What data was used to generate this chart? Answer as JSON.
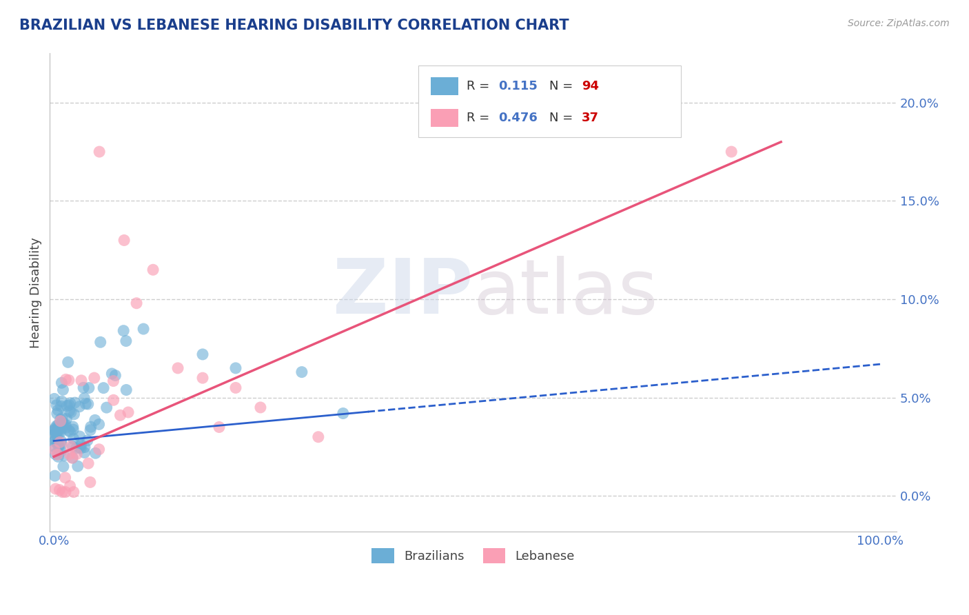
{
  "title": "BRAZILIAN VS LEBANESE HEARING DISABILITY CORRELATION CHART",
  "source": "Source: ZipAtlas.com",
  "ylabel": "Hearing Disability",
  "watermark": "ZIPatlas",
  "xlim": [
    -0.005,
    1.02
  ],
  "ylim": [
    -0.018,
    0.225
  ],
  "xticks": [
    0.0,
    1.0
  ],
  "xtick_labels": [
    "0.0%",
    "100.0%"
  ],
  "yticks": [
    0.0,
    0.05,
    0.1,
    0.15,
    0.2
  ],
  "ytick_labels": [
    "0.0%",
    "5.0%",
    "10.0%",
    "15.0%",
    "20.0%"
  ],
  "brazilian_color": "#6baed6",
  "lebanese_color": "#fa9fb5",
  "brazilian_line_color": "#2b5fcc",
  "lebanese_line_color": "#e8547a",
  "brazilian_R": 0.115,
  "brazilian_N": 94,
  "lebanese_R": 0.476,
  "lebanese_N": 37,
  "legend_label_color": "#333333",
  "legend_R_value_color": "#4472c4",
  "legend_N_value_color": "#cc0000",
  "title_color": "#1a3e8c",
  "axis_label_color": "#444444",
  "tick_color": "#4472c4",
  "grid_color": "#c8c8c8",
  "background_color": "#ffffff",
  "braz_line_solid_end": 0.38,
  "braz_line_y_start": 0.028,
  "braz_line_y_end": 0.067,
  "leb_line_x_start": 0.0,
  "leb_line_x_end": 0.88,
  "leb_line_y_start": 0.02,
  "leb_line_y_end": 0.18
}
